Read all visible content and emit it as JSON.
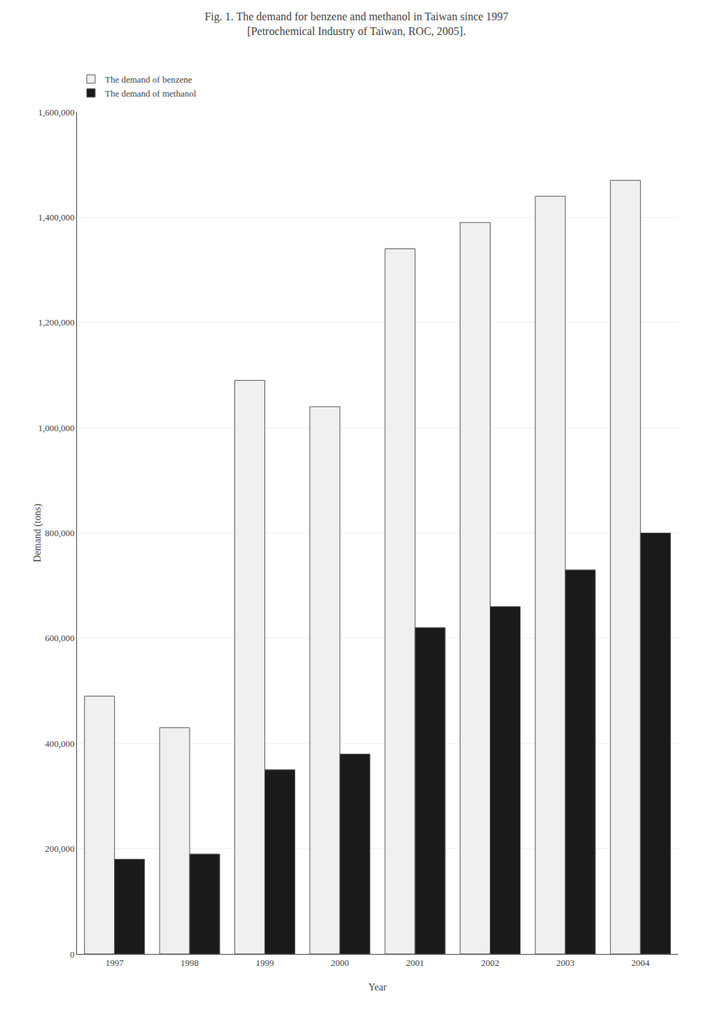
{
  "chart_data": {
    "type": "bar",
    "title": "Fig. 1. The demand for benzene and methanol in Taiwan since 1997\n[Petrochemical Industry of Taiwan, ROC, 2005].",
    "xlabel": "Year",
    "ylabel": "Demand (tons)",
    "categories": [
      "1997",
      "1998",
      "1999",
      "2000",
      "2001",
      "2002",
      "2003",
      "2004"
    ],
    "series": [
      {
        "name": "The demand of benzene",
        "color": "#f0f0f0",
        "values": [
          490000,
          430000,
          1090000,
          1040000,
          1340000,
          1390000,
          1440000,
          1470000
        ]
      },
      {
        "name": "The demand of methanol",
        "color": "#1a1a1a",
        "values": [
          180000,
          190000,
          350000,
          380000,
          620000,
          660000,
          730000,
          800000
        ]
      }
    ],
    "ylim": [
      0,
      1600000
    ],
    "yticks": [
      0,
      {
        "value": 200000,
        "label": "200,000"
      },
      {
        "value": 400000,
        "label": "400,000"
      },
      {
        "value": 600000,
        "label": "600,000"
      },
      {
        "value": 800000,
        "label": "800,000"
      },
      {
        "value": 1000000,
        "label": "1,000,000"
      },
      {
        "value": 1200000,
        "label": "1,200,000"
      },
      {
        "value": 1400000,
        "label": "1,400,000"
      },
      {
        "value": 1600000,
        "label": "1,600,000"
      }
    ],
    "grid": true,
    "legend": "upper left"
  }
}
